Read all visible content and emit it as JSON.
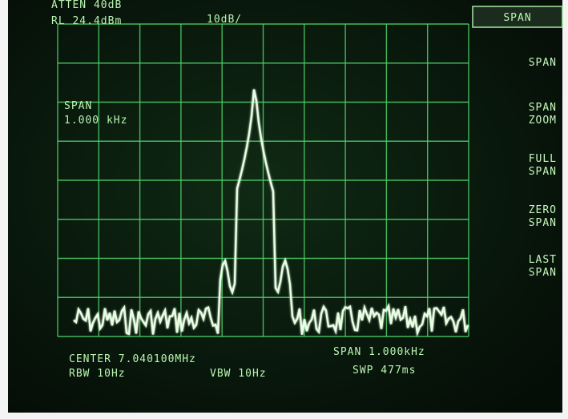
{
  "header": {
    "atten": "ATTEN 40dB",
    "ref_level": "RL 24.4dBm",
    "scale": "10dB/",
    "active_menu": "SPAN"
  },
  "marker_box": {
    "title": "SPAN",
    "value": "1.000 kHz"
  },
  "softkeys": [
    {
      "line1": "SPAN"
    },
    {
      "line1": "SPAN",
      "line2": "ZOOM"
    },
    {
      "line1": "FULL",
      "line2": "SPAN"
    },
    {
      "line1": "ZERO",
      "line2": "SPAN"
    },
    {
      "line1": "LAST",
      "line2": "SPAN"
    }
  ],
  "footer": {
    "center": "CENTER 7.040100MHz",
    "span": "SPAN 1.000kHz",
    "rbw": "RBW 10Hz",
    "vbw": "VBW 10Hz",
    "sweep": "SWP 477ms"
  }
}
